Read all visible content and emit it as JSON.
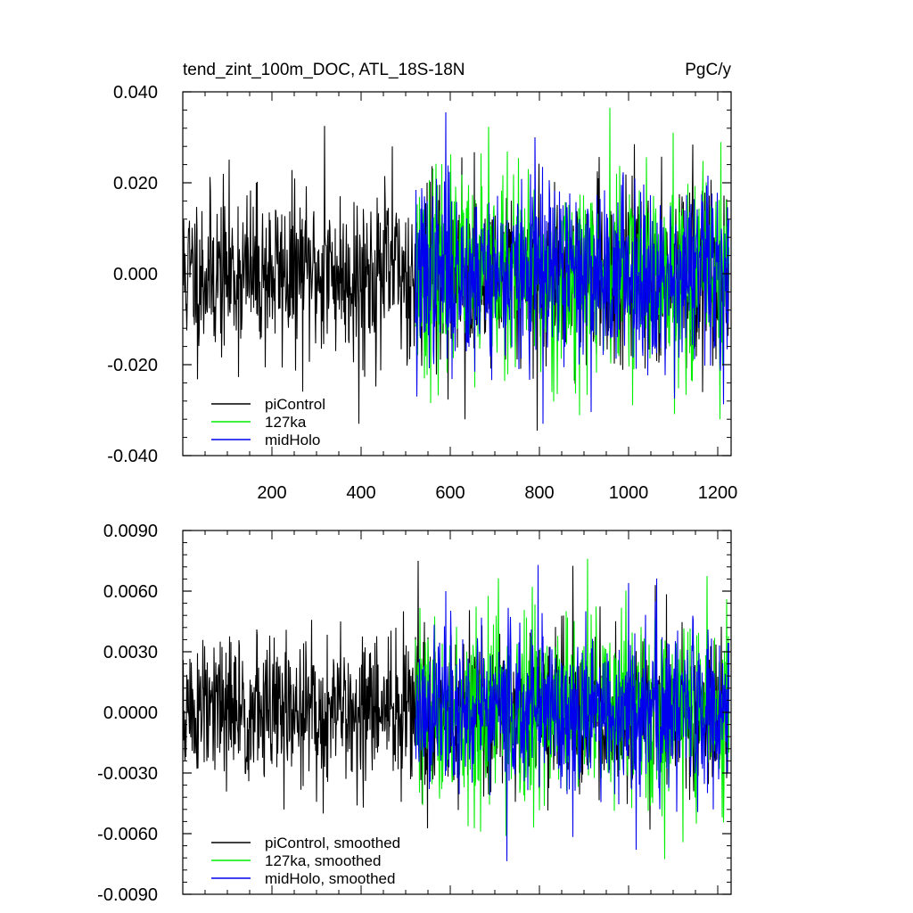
{
  "chart_data": [
    {
      "type": "line",
      "title": "tend_zint_100m_DOC, ATL_18S-18N",
      "units_label": "PgC/y",
      "xlim": [
        0,
        1230
      ],
      "ylim": [
        -0.04,
        0.04
      ],
      "x_ticks": [
        200,
        400,
        600,
        800,
        1000,
        1200
      ],
      "x_tick_labels": [
        "200",
        "400",
        "600",
        "800",
        "1000",
        "1200"
      ],
      "y_ticks": [
        -0.04,
        -0.02,
        0.0,
        0.02,
        0.04
      ],
      "y_tick_labels": [
        "-0.040",
        "-0.020",
        "0.000",
        "0.020",
        "0.040"
      ],
      "legend_position": "bottom-left",
      "grid": false,
      "series": [
        {
          "name": "piControl",
          "color": "#000000",
          "x_range": [
            1,
            1225
          ],
          "std": 0.0092,
          "seed": 11,
          "peaks": [
            [
              318,
              0.0325
            ],
            [
              395,
              -0.033
            ],
            [
              633,
              -0.032
            ],
            [
              795,
              -0.0345
            ],
            [
              470,
              0.028
            ]
          ]
        },
        {
          "name": "127ka",
          "color": "#00ee00",
          "x_range": [
            522,
            1225
          ],
          "std": 0.0105,
          "seed": 23,
          "peaks": [
            [
              958,
              0.0365
            ],
            [
              1205,
              -0.032
            ],
            [
              1100,
              0.031
            ],
            [
              655,
              -0.025
            ]
          ]
        },
        {
          "name": "midHolo",
          "color": "#0000ee",
          "x_range": [
            522,
            1225
          ],
          "std": 0.0098,
          "seed": 37,
          "peaks": [
            [
              590,
              0.0355
            ],
            [
              808,
              -0.033
            ],
            [
              525,
              -0.027
            ],
            [
              790,
              0.03
            ]
          ]
        }
      ]
    },
    {
      "type": "line",
      "xlim": [
        0,
        1230
      ],
      "ylim": [
        -0.009,
        0.009
      ],
      "y_ticks": [
        -0.009,
        -0.006,
        -0.003,
        0.0,
        0.003,
        0.006,
        0.009
      ],
      "y_tick_labels": [
        "-0.0090",
        "-0.0060",
        "-0.0030",
        "0.0000",
        "0.0030",
        "0.0060",
        "0.0090"
      ],
      "legend_position": "bottom-left",
      "grid": false,
      "series": [
        {
          "name": "piControl, smoothed",
          "color": "#000000",
          "x_range": [
            1,
            1225
          ],
          "std": 0.0019,
          "seed": 51,
          "peaks": [
            [
              528,
              0.0075
            ],
            [
              1048,
              -0.0058
            ],
            [
              315,
              -0.005
            ],
            [
              1060,
              0.0063
            ]
          ]
        },
        {
          "name": "127ka, smoothed",
          "color": "#00ee00",
          "x_range": [
            522,
            1225
          ],
          "std": 0.0022,
          "seed": 63,
          "peaks": [
            [
              908,
              0.0076
            ],
            [
              668,
              -0.0059
            ],
            [
              1220,
              0.0056
            ],
            [
              1210,
              -0.0052
            ]
          ]
        },
        {
          "name": "midHolo, smoothed",
          "color": "#0000ee",
          "x_range": [
            522,
            1225
          ],
          "std": 0.0021,
          "seed": 77,
          "peaks": [
            [
              518,
              -0.0062
            ],
            [
              1000,
              0.0064
            ],
            [
              590,
              0.006
            ],
            [
              1190,
              -0.0048
            ]
          ]
        }
      ]
    }
  ]
}
